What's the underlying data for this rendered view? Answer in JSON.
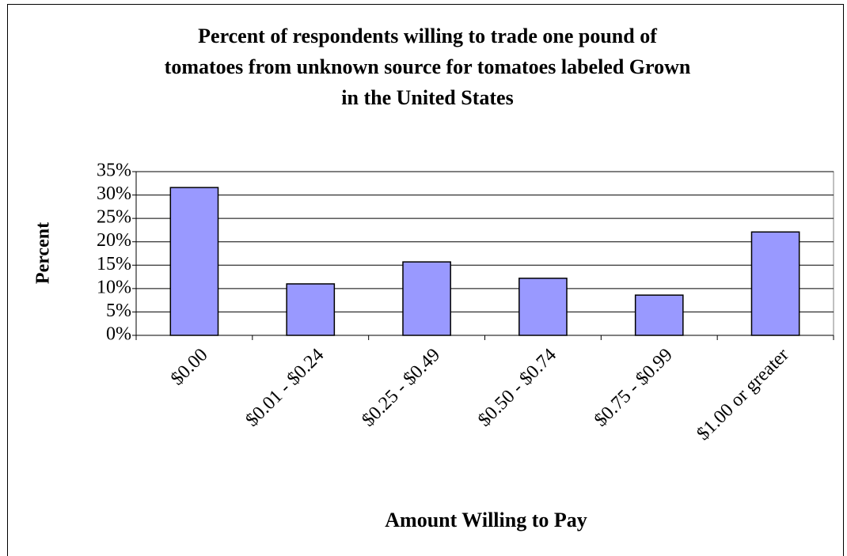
{
  "chart_data": {
    "type": "bar",
    "title": [
      "Percent of respondents willing to trade one pound of",
      "tomatoes from unknown source for tomatoes labeled Grown",
      "in the United States"
    ],
    "x_label": "Amount Willing to Pay",
    "y_label": "Percent",
    "categories": [
      "$0.00",
      "$0.01 - $0.24",
      "$0.25 - $0.49",
      "$0.50 - $0.74",
      "$0.75 - $0.99",
      "$1.00 or greater"
    ],
    "values": [
      31.6,
      11.0,
      15.7,
      12.2,
      8.6,
      22.1
    ],
    "color": "#9999ff",
    "ylim": [
      0,
      35
    ],
    "yticks": [
      {
        "value": 0,
        "label": "0%"
      },
      {
        "value": 5,
        "label": "5%"
      },
      {
        "value": 10,
        "label": "10%"
      },
      {
        "value": 15,
        "label": "15%"
      },
      {
        "value": 20,
        "label": "20%"
      },
      {
        "value": 25,
        "label": "25%"
      },
      {
        "value": 30,
        "label": "30%"
      },
      {
        "value": 35,
        "label": "35%"
      }
    ],
    "grid": true
  }
}
